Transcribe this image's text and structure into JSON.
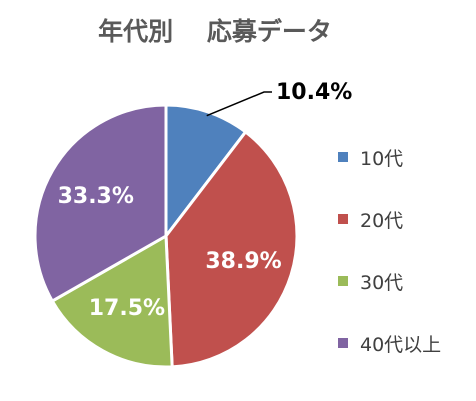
{
  "chart_data": {
    "type": "pie",
    "title": "年代別　 応募データ",
    "categories": [
      "10代",
      "20代",
      "30代",
      "40代以上"
    ],
    "values": [
      10.4,
      38.9,
      17.5,
      33.3
    ],
    "data_labels": [
      "10.4%",
      "38.9%",
      "17.5%",
      "33.3%"
    ],
    "colors": [
      "#4F81BD",
      "#C0504D",
      "#9BBB59",
      "#8064A2"
    ],
    "start_angle_deg": 0,
    "direction": "clockwise",
    "legend_position": "right"
  }
}
